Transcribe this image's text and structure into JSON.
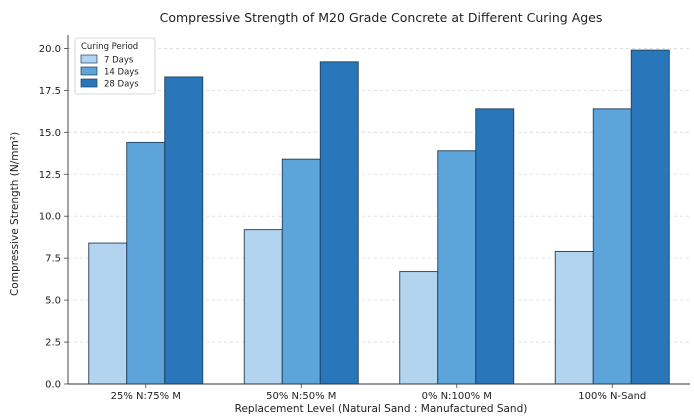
{
  "chart_data": {
    "type": "bar",
    "title": "Compressive Strength of M20 Grade Concrete at Different Curing Ages",
    "xlabel": "Replacement Level (Natural Sand : Manufactured Sand)",
    "ylabel": "Compressive Strength (N/mm²)",
    "ylim": [
      0,
      20.8
    ],
    "yticks": [
      "0.0",
      "2.5",
      "5.0",
      "7.5",
      "10.0",
      "12.5",
      "15.0",
      "17.5",
      "20.0"
    ],
    "ytick_values": [
      0,
      2.5,
      5,
      7.5,
      10,
      12.5,
      15,
      17.5,
      20
    ],
    "grid": "horizontal dashed",
    "categories": [
      "25% N:75% M",
      "50% N:50% M",
      "0% N:100% M",
      "100% N-Sand"
    ],
    "legend": {
      "title": "Curing Period",
      "placement": "top-left"
    },
    "series": [
      {
        "name": "7 Days",
        "color": "#b3d4ee",
        "values": [
          8.4,
          9.2,
          6.7,
          7.9
        ]
      },
      {
        "name": "14 Days",
        "color": "#5da4db",
        "values": [
          14.4,
          13.4,
          13.9,
          16.4
        ]
      },
      {
        "name": "28 Days",
        "color": "#2977ba",
        "values": [
          18.3,
          19.2,
          16.4,
          19.9
        ]
      }
    ]
  }
}
